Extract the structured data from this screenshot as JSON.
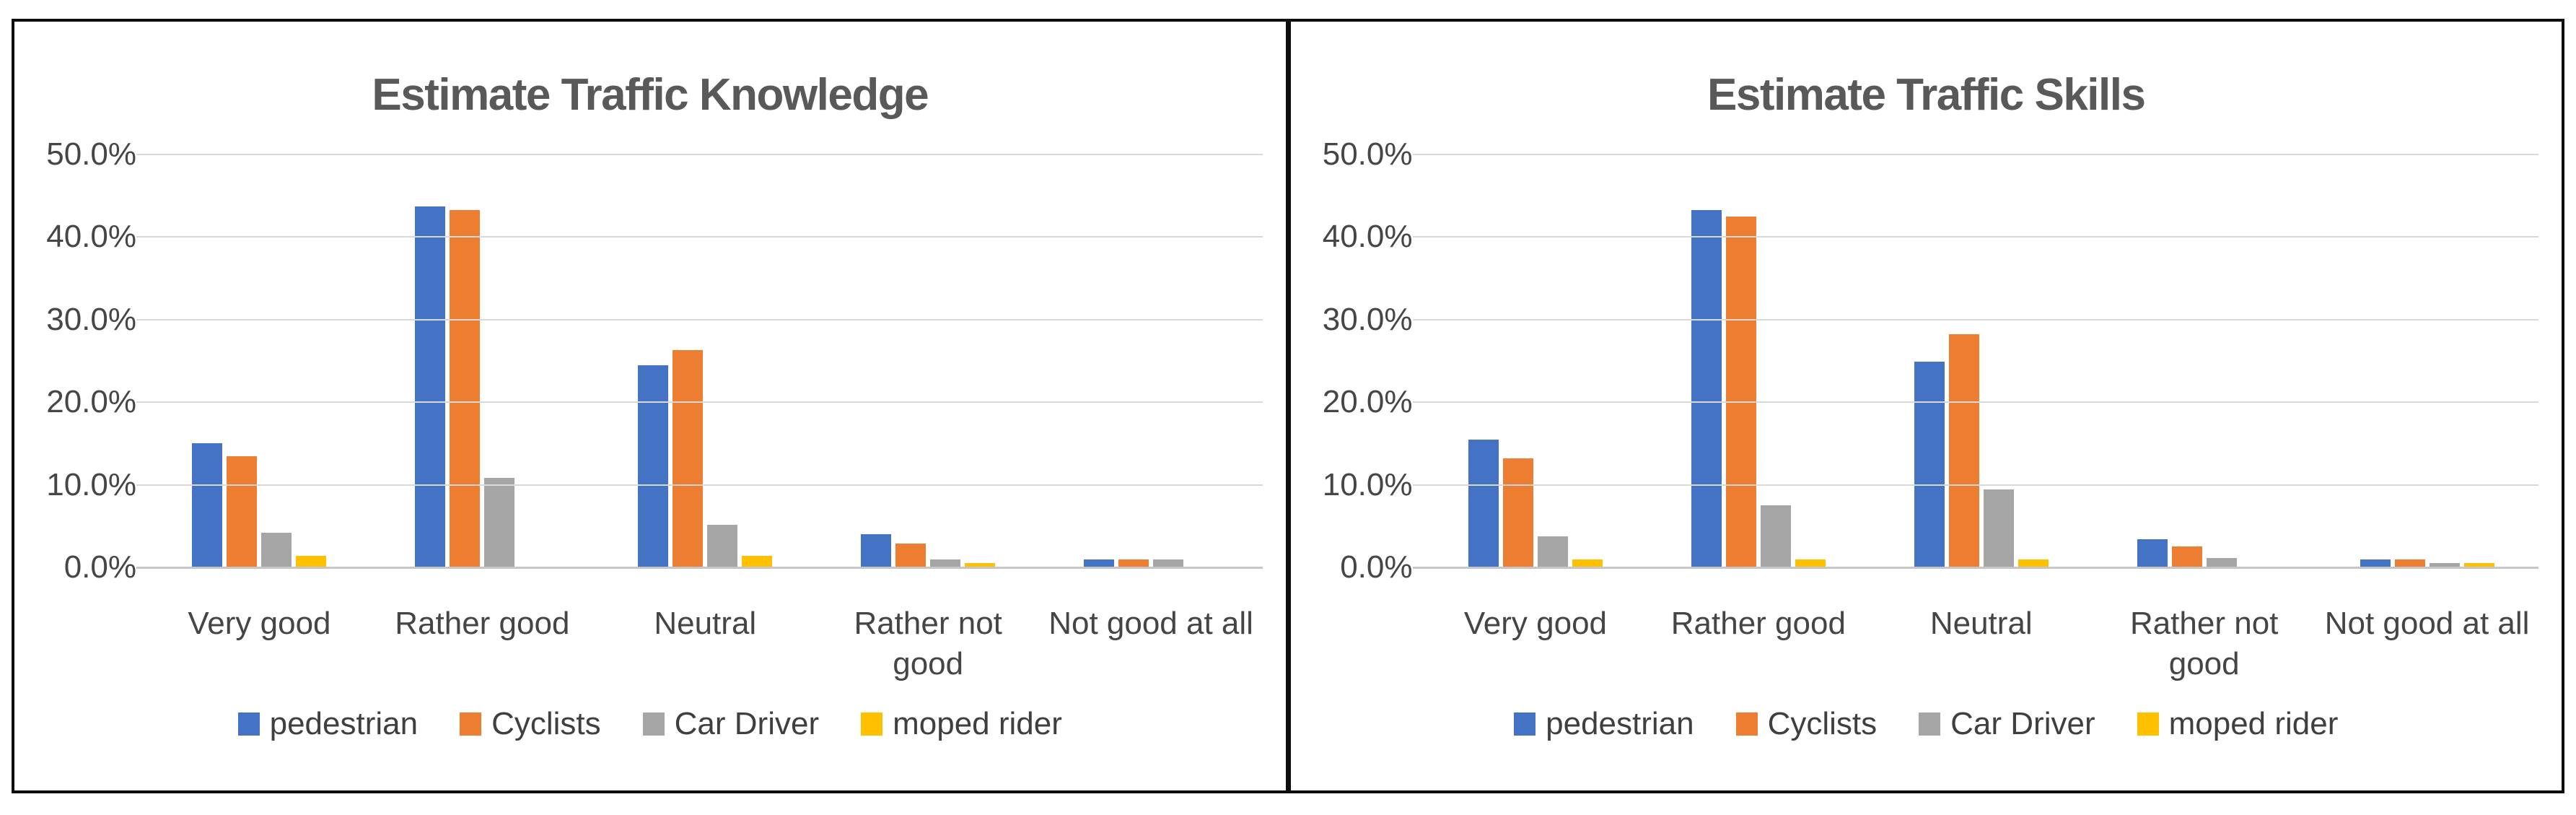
{
  "chart_data": [
    {
      "type": "bar",
      "title": "Estimate Traffic Knowledge",
      "categories": [
        "Very good",
        "Rather good",
        "Neutral",
        "Rather not\ngood",
        "Not good at all"
      ],
      "series": [
        {
          "name": "pedestrian",
          "color": "#4472C4",
          "values": [
            15.0,
            43.7,
            24.5,
            4.0,
            1.0
          ]
        },
        {
          "name": "Cyclists",
          "color": "#ED7D31",
          "values": [
            13.5,
            43.3,
            26.3,
            2.9,
            1.0
          ]
        },
        {
          "name": "Car Driver",
          "color": "#A5A5A5",
          "values": [
            4.2,
            10.8,
            5.2,
            1.0,
            1.0
          ]
        },
        {
          "name": "moped rider",
          "color": "#FFC000",
          "values": [
            1.4,
            0.0,
            1.4,
            0.5,
            0.0
          ]
        }
      ],
      "y_ticks": [
        "50.0%",
        "40.0%",
        "30.0%",
        "20.0%",
        "10.0%",
        "0.0%"
      ],
      "ylim": [
        0,
        50
      ],
      "grid": true,
      "legend_position": "bottom"
    },
    {
      "type": "bar",
      "title": "Estimate Traffic Skills",
      "categories": [
        "Very good",
        "Rather good",
        "Neutral",
        "Rather not\ngood",
        "Not good at all"
      ],
      "series": [
        {
          "name": "pedestrian",
          "color": "#4472C4",
          "values": [
            15.5,
            43.3,
            24.9,
            3.4,
            1.0
          ]
        },
        {
          "name": "Cyclists",
          "color": "#ED7D31",
          "values": [
            13.2,
            42.5,
            28.2,
            2.5,
            1.0
          ]
        },
        {
          "name": "Car Driver",
          "color": "#A5A5A5",
          "values": [
            3.8,
            7.5,
            9.4,
            1.1,
            0.5
          ]
        },
        {
          "name": "moped rider",
          "color": "#FFC000",
          "values": [
            1.0,
            1.0,
            1.0,
            0.0,
            0.5
          ]
        }
      ],
      "y_ticks": [
        "50.0%",
        "40.0%",
        "30.0%",
        "20.0%",
        "10.0%",
        "0.0%"
      ],
      "ylim": [
        0,
        50
      ],
      "grid": true,
      "legend_position": "bottom"
    }
  ]
}
